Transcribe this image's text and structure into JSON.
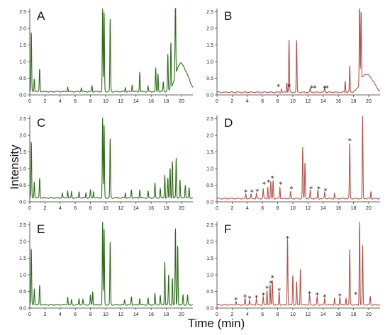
{
  "figure": {
    "xlabel": "Time (min)",
    "ylabel": "Intensity"
  },
  "colors": {
    "green": "#2e6b1a",
    "red": "#b0544a",
    "axis": "#333333"
  },
  "chart_data": [
    {
      "type": "line",
      "panel": "A",
      "color": "green",
      "xlim": [
        0,
        21.5
      ],
      "ylim": [
        0,
        2.6
      ],
      "xticks": [
        0,
        2,
        4,
        6,
        8,
        10,
        12,
        14,
        16,
        18,
        20
      ],
      "yticks": [
        0,
        0.5,
        1.0,
        1.5,
        2.0,
        2.5
      ],
      "ytick_labels": [
        "0.0",
        "0.5",
        "1.0",
        "1.5",
        "2.0",
        "2.5"
      ],
      "baseline": 0.1,
      "peaks": [
        [
          0.2,
          1.8
        ],
        [
          0.6,
          0.4
        ],
        [
          1.3,
          0.7
        ],
        [
          5,
          0.15
        ],
        [
          6.8,
          0.12
        ],
        [
          8.2,
          0.18
        ],
        [
          9.6,
          2.55
        ],
        [
          9.8,
          2.4
        ],
        [
          10.6,
          2.2
        ],
        [
          12.6,
          0.12
        ],
        [
          13.5,
          0.22
        ],
        [
          14.5,
          0.6
        ],
        [
          15.6,
          0.15
        ],
        [
          16.6,
          0.7
        ],
        [
          16.9,
          0.55
        ],
        [
          17.6,
          0.3
        ],
        [
          18.2,
          1.1
        ],
        [
          18.6,
          1.4
        ],
        [
          19.2,
          2.5
        ]
      ],
      "humps": [
        [
          19.8,
          0.8,
          0.6
        ],
        [
          20.8,
          0.3,
          0.5
        ]
      ],
      "stars": []
    },
    {
      "type": "line",
      "panel": "B",
      "color": "red",
      "xlim": [
        0,
        21.5
      ],
      "ylim": [
        0,
        2.6
      ],
      "xticks": [
        0,
        2,
        4,
        6,
        8,
        10,
        12,
        14,
        16,
        18,
        20
      ],
      "yticks": [
        0,
        0.5,
        1.0,
        1.5,
        2.0,
        2.5
      ],
      "ytick_labels": [
        "0.0",
        "0.5",
        "1.0",
        "1.5",
        "2.0",
        "2.5"
      ],
      "baseline": 0.08,
      "peaks": [
        [
          8.5,
          0.1
        ],
        [
          9.2,
          0.3
        ],
        [
          9.5,
          1.6
        ],
        [
          10.5,
          1.6
        ],
        [
          12.3,
          0.12
        ],
        [
          14.2,
          0.15
        ],
        [
          16.9,
          0.35
        ],
        [
          17.5,
          0.8
        ],
        [
          18.8,
          2.55
        ],
        [
          19.0,
          2.1
        ]
      ],
      "humps": [
        [
          19.5,
          0.5,
          0.6
        ],
        [
          20.5,
          0.25,
          0.5
        ]
      ],
      "stars": [
        [
          8.1,
          0.16
        ],
        [
          9.5,
          0.16
        ],
        [
          12.5,
          0.12
        ],
        [
          12.9,
          0.12
        ],
        [
          14.2,
          0.12
        ],
        [
          14.5,
          0.12
        ]
      ]
    },
    {
      "type": "line",
      "panel": "C",
      "color": "green",
      "xlim": [
        0,
        21.5
      ],
      "ylim": [
        0,
        2.6
      ],
      "xticks": [
        0,
        2,
        4,
        6,
        8,
        10,
        12,
        14,
        16,
        18,
        20
      ],
      "yticks": [
        0,
        0.5,
        1.0,
        1.5,
        2.0,
        2.5
      ],
      "ytick_labels": [
        "0.0",
        "0.5",
        "1.0",
        "1.5",
        "2.0",
        "2.5"
      ],
      "baseline": 0.12,
      "peaks": [
        [
          0.2,
          1.7
        ],
        [
          0.6,
          0.5
        ],
        [
          1.3,
          0.6
        ],
        [
          4.3,
          0.15
        ],
        [
          5,
          0.22
        ],
        [
          5.5,
          0.18
        ],
        [
          6.5,
          0.2
        ],
        [
          7.4,
          0.15
        ],
        [
          8,
          0.25
        ],
        [
          8.4,
          0.2
        ],
        [
          9.6,
          2.4
        ],
        [
          9.8,
          2.2
        ],
        [
          10.6,
          1.8
        ],
        [
          12.6,
          0.15
        ],
        [
          13.4,
          0.25
        ],
        [
          14.5,
          0.25
        ],
        [
          15.6,
          0.2
        ],
        [
          16.5,
          0.45
        ],
        [
          17.2,
          0.3
        ],
        [
          17.8,
          0.7
        ],
        [
          18.2,
          0.6
        ],
        [
          18.5,
          0.9
        ],
        [
          18.8,
          1.1
        ],
        [
          19.3,
          1.2
        ],
        [
          19.8,
          0.55
        ],
        [
          20.5,
          0.4
        ],
        [
          21,
          0.3
        ]
      ],
      "humps": [],
      "stars": []
    },
    {
      "type": "line",
      "panel": "D",
      "color": "red",
      "xlim": [
        0,
        21.5
      ],
      "ylim": [
        0,
        2.6
      ],
      "xticks": [
        0,
        2,
        4,
        6,
        8,
        10,
        12,
        14,
        16,
        18,
        20
      ],
      "yticks": [
        0,
        0.5,
        1.0,
        1.5,
        2.0,
        2.5
      ],
      "ytick_labels": [
        "0.0",
        "0.5",
        "1.0",
        "1.5",
        "2.0",
        "2.5"
      ],
      "baseline": 0.1,
      "peaks": [
        [
          3.8,
          0.12
        ],
        [
          4.5,
          0.12
        ],
        [
          5.2,
          0.15
        ],
        [
          6.1,
          0.3
        ],
        [
          6.7,
          0.35
        ],
        [
          7.1,
          0.5
        ],
        [
          7.4,
          0.55
        ],
        [
          8.3,
          0.35
        ],
        [
          9.7,
          0.2
        ],
        [
          11.3,
          1.55
        ],
        [
          11.6,
          1.1
        ],
        [
          12.3,
          0.25
        ],
        [
          13.3,
          0.25
        ],
        [
          14.2,
          0.2
        ],
        [
          15.5,
          0.15
        ],
        [
          17.5,
          1.7
        ],
        [
          19.2,
          2.5
        ],
        [
          20.3,
          0.2
        ]
      ],
      "humps": [],
      "stars": [
        [
          3.8,
          0.2
        ],
        [
          4.6,
          0.2
        ],
        [
          5.3,
          0.22
        ],
        [
          6.2,
          0.44
        ],
        [
          6.8,
          0.5
        ],
        [
          7.3,
          0.62
        ],
        [
          8.4,
          0.44
        ],
        [
          9.8,
          0.3
        ],
        [
          12.4,
          0.3
        ],
        [
          13.4,
          0.3
        ],
        [
          14.3,
          0.24
        ],
        [
          17.5,
          1.75
        ]
      ]
    },
    {
      "type": "line",
      "panel": "E",
      "color": "green",
      "xlim": [
        0,
        21.5
      ],
      "ylim": [
        0,
        2.6
      ],
      "xticks": [
        0,
        2,
        4,
        6,
        8,
        10,
        12,
        14,
        16,
        18,
        20
      ],
      "yticks": [
        0,
        0.5,
        1.0,
        1.5,
        2.0,
        2.5
      ],
      "ytick_labels": [
        "0.0",
        "0.5",
        "1.0",
        "1.5",
        "2.0",
        "2.5"
      ],
      "baseline": 0.1,
      "peaks": [
        [
          0.2,
          1.7
        ],
        [
          0.6,
          0.5
        ],
        [
          1.3,
          0.6
        ],
        [
          5,
          0.25
        ],
        [
          5.5,
          0.15
        ],
        [
          6.5,
          0.2
        ],
        [
          7,
          0.15
        ],
        [
          8,
          0.3
        ],
        [
          8.3,
          0.4
        ],
        [
          9.6,
          2.5
        ],
        [
          9.8,
          2.3
        ],
        [
          10.6,
          1.9
        ],
        [
          12.5,
          0.15
        ],
        [
          13.4,
          0.25
        ],
        [
          14.5,
          0.2
        ],
        [
          15.6,
          0.2
        ],
        [
          16.5,
          0.35
        ],
        [
          17.2,
          0.3
        ],
        [
          17.8,
          1.3
        ],
        [
          18.3,
          0.9
        ],
        [
          18.8,
          0.8
        ],
        [
          19.2,
          2.3
        ],
        [
          19.5,
          1.8
        ],
        [
          20.2,
          0.3
        ],
        [
          20.8,
          0.3
        ]
      ],
      "humps": [],
      "stars": []
    },
    {
      "type": "line",
      "panel": "F",
      "color": "red",
      "xlim": [
        0,
        21.5
      ],
      "ylim": [
        0,
        2.6
      ],
      "xticks": [
        0,
        2,
        4,
        6,
        8,
        10,
        12,
        14,
        16,
        18,
        20
      ],
      "yticks": [
        0,
        0.5,
        1.0,
        1.5,
        2.0,
        2.5
      ],
      "ytick_labels": [
        "0.0",
        "0.5",
        "1.0",
        "1.5",
        "2.0",
        "2.5"
      ],
      "baseline": 0.1,
      "peaks": [
        [
          2.5,
          0.12
        ],
        [
          3.7,
          0.2
        ],
        [
          4.3,
          0.15
        ],
        [
          5.2,
          0.18
        ],
        [
          6.1,
          0.25
        ],
        [
          6.6,
          0.45
        ],
        [
          7.0,
          0.6
        ],
        [
          7.3,
          0.75
        ],
        [
          8.2,
          0.4
        ],
        [
          9.3,
          2.0
        ],
        [
          10.0,
          0.9
        ],
        [
          10.5,
          0.7
        ],
        [
          11.0,
          1.1
        ],
        [
          12.2,
          0.3
        ],
        [
          13.2,
          0.25
        ],
        [
          14.2,
          0.2
        ],
        [
          15.5,
          0.2
        ],
        [
          16.2,
          0.25
        ],
        [
          17.0,
          0.2
        ],
        [
          17.5,
          1.7
        ],
        [
          18.8,
          2.55
        ],
        [
          19.2,
          1.8
        ],
        [
          20.2,
          0.25
        ]
      ],
      "humps": [],
      "stars": [
        [
          2.5,
          0.16
        ],
        [
          3.7,
          0.24
        ],
        [
          4.3,
          0.2
        ],
        [
          5.2,
          0.22
        ],
        [
          6.1,
          0.3
        ],
        [
          6.6,
          0.5
        ],
        [
          7.1,
          0.66
        ],
        [
          7.3,
          0.82
        ],
        [
          8.2,
          0.44
        ],
        [
          9.3,
          2.0
        ],
        [
          12.2,
          0.34
        ],
        [
          13.2,
          0.3
        ],
        [
          14.2,
          0.24
        ],
        [
          16.2,
          0.28
        ],
        [
          18.3,
          0.32
        ]
      ]
    }
  ]
}
